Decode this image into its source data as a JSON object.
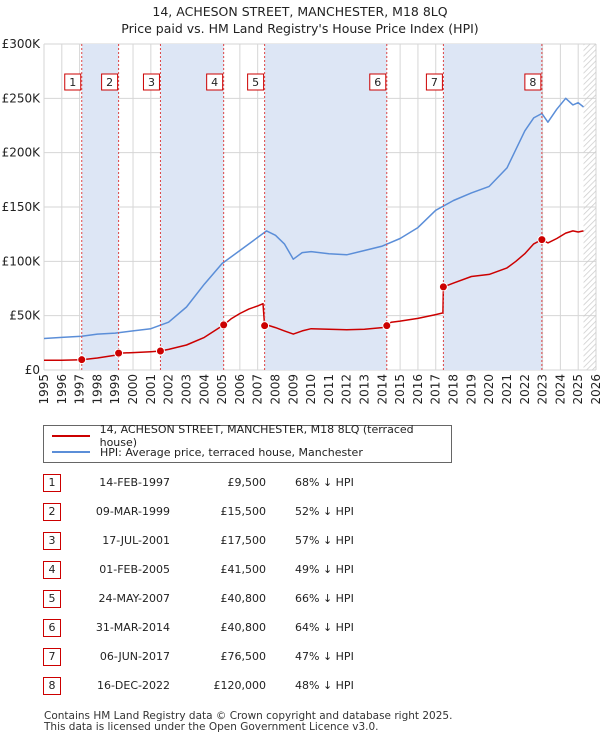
{
  "header": {
    "title_line1": "14, ACHESON STREET, MANCHESTER, M18 8LQ",
    "title_line2": "Price paid vs. HM Land Registry's House Price Index (HPI)"
  },
  "chart_data": {
    "type": "line",
    "ylim": [
      0,
      300000
    ],
    "xlim": [
      1995,
      2026
    ],
    "y_ticks": [
      {
        "value": 0,
        "label": "£0"
      },
      {
        "value": 50000,
        "label": "£50K"
      },
      {
        "value": 100000,
        "label": "£100K"
      },
      {
        "value": 150000,
        "label": "£150K"
      },
      {
        "value": 200000,
        "label": "£200K"
      },
      {
        "value": 250000,
        "label": "£250K"
      },
      {
        "value": 300000,
        "label": "£300K"
      }
    ],
    "x_ticks": [
      "1995",
      "1996",
      "1997",
      "1998",
      "1999",
      "2000",
      "2001",
      "2002",
      "2003",
      "2004",
      "2005",
      "2006",
      "2007",
      "2008",
      "2009",
      "2010",
      "2011",
      "2012",
      "2013",
      "2014",
      "2015",
      "2016",
      "2017",
      "2018",
      "2019",
      "2020",
      "2021",
      "2022",
      "2023",
      "2024",
      "2025",
      "2026"
    ],
    "grid": true,
    "future_hatch_from": 2025.3,
    "colors": {
      "property": "#cc0000",
      "hpi": "#5b8ed8",
      "shade": "#dde6f5",
      "grid": "#d6d6d6",
      "marker_line": "#dd4444"
    },
    "sale_markers": [
      {
        "label": "1",
        "x": 1997.12
      },
      {
        "label": "2",
        "x": 1999.19
      },
      {
        "label": "3",
        "x": 2001.54
      },
      {
        "label": "4",
        "x": 2005.09
      },
      {
        "label": "5",
        "x": 2007.39
      },
      {
        "label": "6",
        "x": 2014.25
      },
      {
        "label": "7",
        "x": 2017.43
      },
      {
        "label": "8",
        "x": 2022.96
      }
    ],
    "series": [
      {
        "name": "14, ACHESON STREET, MANCHESTER, M18 8LQ (terraced house)",
        "x": [
          1995.0,
          1996.0,
          1997.12,
          1998.0,
          1999.0,
          1999.19,
          2000.0,
          2001.0,
          2001.54,
          2002.0,
          2003.0,
          2004.0,
          2005.09,
          2005.5,
          2006.0,
          2006.5,
          2007.0,
          2007.3,
          2007.39,
          2007.6,
          2008.0,
          2008.5,
          2009.0,
          2009.5,
          2010.0,
          2011.0,
          2012.0,
          2013.0,
          2014.0,
          2014.25,
          2014.5,
          2015.0,
          2016.0,
          2017.0,
          2017.4,
          2017.43,
          2018.0,
          2019.0,
          2020.0,
          2021.0,
          2021.5,
          2022.0,
          2022.5,
          2022.96,
          2023.3,
          2023.8,
          2024.3,
          2024.7,
          2025.0,
          2025.3
        ],
        "values": [
          9000,
          9000,
          9500,
          11000,
          13500,
          15500,
          16000,
          16800,
          17500,
          19000,
          23000,
          30000,
          41500,
          47000,
          52000,
          56000,
          59000,
          61000,
          40800,
          41000,
          39000,
          36000,
          33000,
          36000,
          38000,
          37500,
          37000,
          37500,
          39000,
          40800,
          44000,
          45000,
          47500,
          51000,
          52500,
          76500,
          80000,
          86000,
          88000,
          94000,
          100000,
          107000,
          116000,
          120000,
          117000,
          121000,
          126000,
          128000,
          127000,
          128000
        ]
      },
      {
        "name": "HPI: Average price, terraced house, Manchester",
        "x": [
          1995.0,
          1996.0,
          1997.12,
          1998.0,
          1999.0,
          2000.0,
          2001.0,
          2002.0,
          2003.0,
          2004.0,
          2005.0,
          2006.0,
          2007.0,
          2007.5,
          2008.0,
          2008.5,
          2009.0,
          2009.5,
          2010.0,
          2011.0,
          2012.0,
          2013.0,
          2014.0,
          2015.0,
          2016.0,
          2017.0,
          2018.0,
          2019.0,
          2020.0,
          2021.0,
          2022.0,
          2022.5,
          2022.96,
          2023.3,
          2023.8,
          2024.3,
          2024.7,
          2025.0,
          2025.3
        ],
        "values": [
          29000,
          30000,
          31000,
          33000,
          34000,
          36000,
          38000,
          44000,
          58000,
          79000,
          98000,
          110000,
          122000,
          128000,
          124000,
          116000,
          102000,
          108000,
          109000,
          107000,
          106000,
          110000,
          114000,
          121000,
          131000,
          147000,
          156000,
          163000,
          169000,
          186000,
          220000,
          232000,
          236000,
          228000,
          240000,
          250000,
          244000,
          246000,
          242000
        ]
      }
    ]
  },
  "legend": {
    "entries": [
      {
        "label": "14, ACHESON STREET, MANCHESTER, M18 8LQ (terraced house)",
        "color": "#cc0000"
      },
      {
        "label": "HPI: Average price, terraced house, Manchester",
        "color": "#5b8ed8"
      }
    ]
  },
  "sales": [
    {
      "num": "1",
      "date": "14-FEB-1997",
      "price": "£9,500",
      "hpi": "68% ↓ HPI"
    },
    {
      "num": "2",
      "date": "09-MAR-1999",
      "price": "£15,500",
      "hpi": "52% ↓ HPI"
    },
    {
      "num": "3",
      "date": "17-JUL-2001",
      "price": "£17,500",
      "hpi": "57% ↓ HPI"
    },
    {
      "num": "4",
      "date": "01-FEB-2005",
      "price": "£41,500",
      "hpi": "49% ↓ HPI"
    },
    {
      "num": "5",
      "date": "24-MAY-2007",
      "price": "£40,800",
      "hpi": "66% ↓ HPI"
    },
    {
      "num": "6",
      "date": "31-MAR-2014",
      "price": "£40,800",
      "hpi": "64% ↓ HPI"
    },
    {
      "num": "7",
      "date": "06-JUN-2017",
      "price": "£76,500",
      "hpi": "47% ↓ HPI"
    },
    {
      "num": "8",
      "date": "16-DEC-2022",
      "price": "£120,000",
      "hpi": "48% ↓ HPI"
    }
  ],
  "footer": {
    "line1": "Contains HM Land Registry data © Crown copyright and database right 2025.",
    "line2": "This data is licensed under the Open Government Licence v3.0."
  }
}
